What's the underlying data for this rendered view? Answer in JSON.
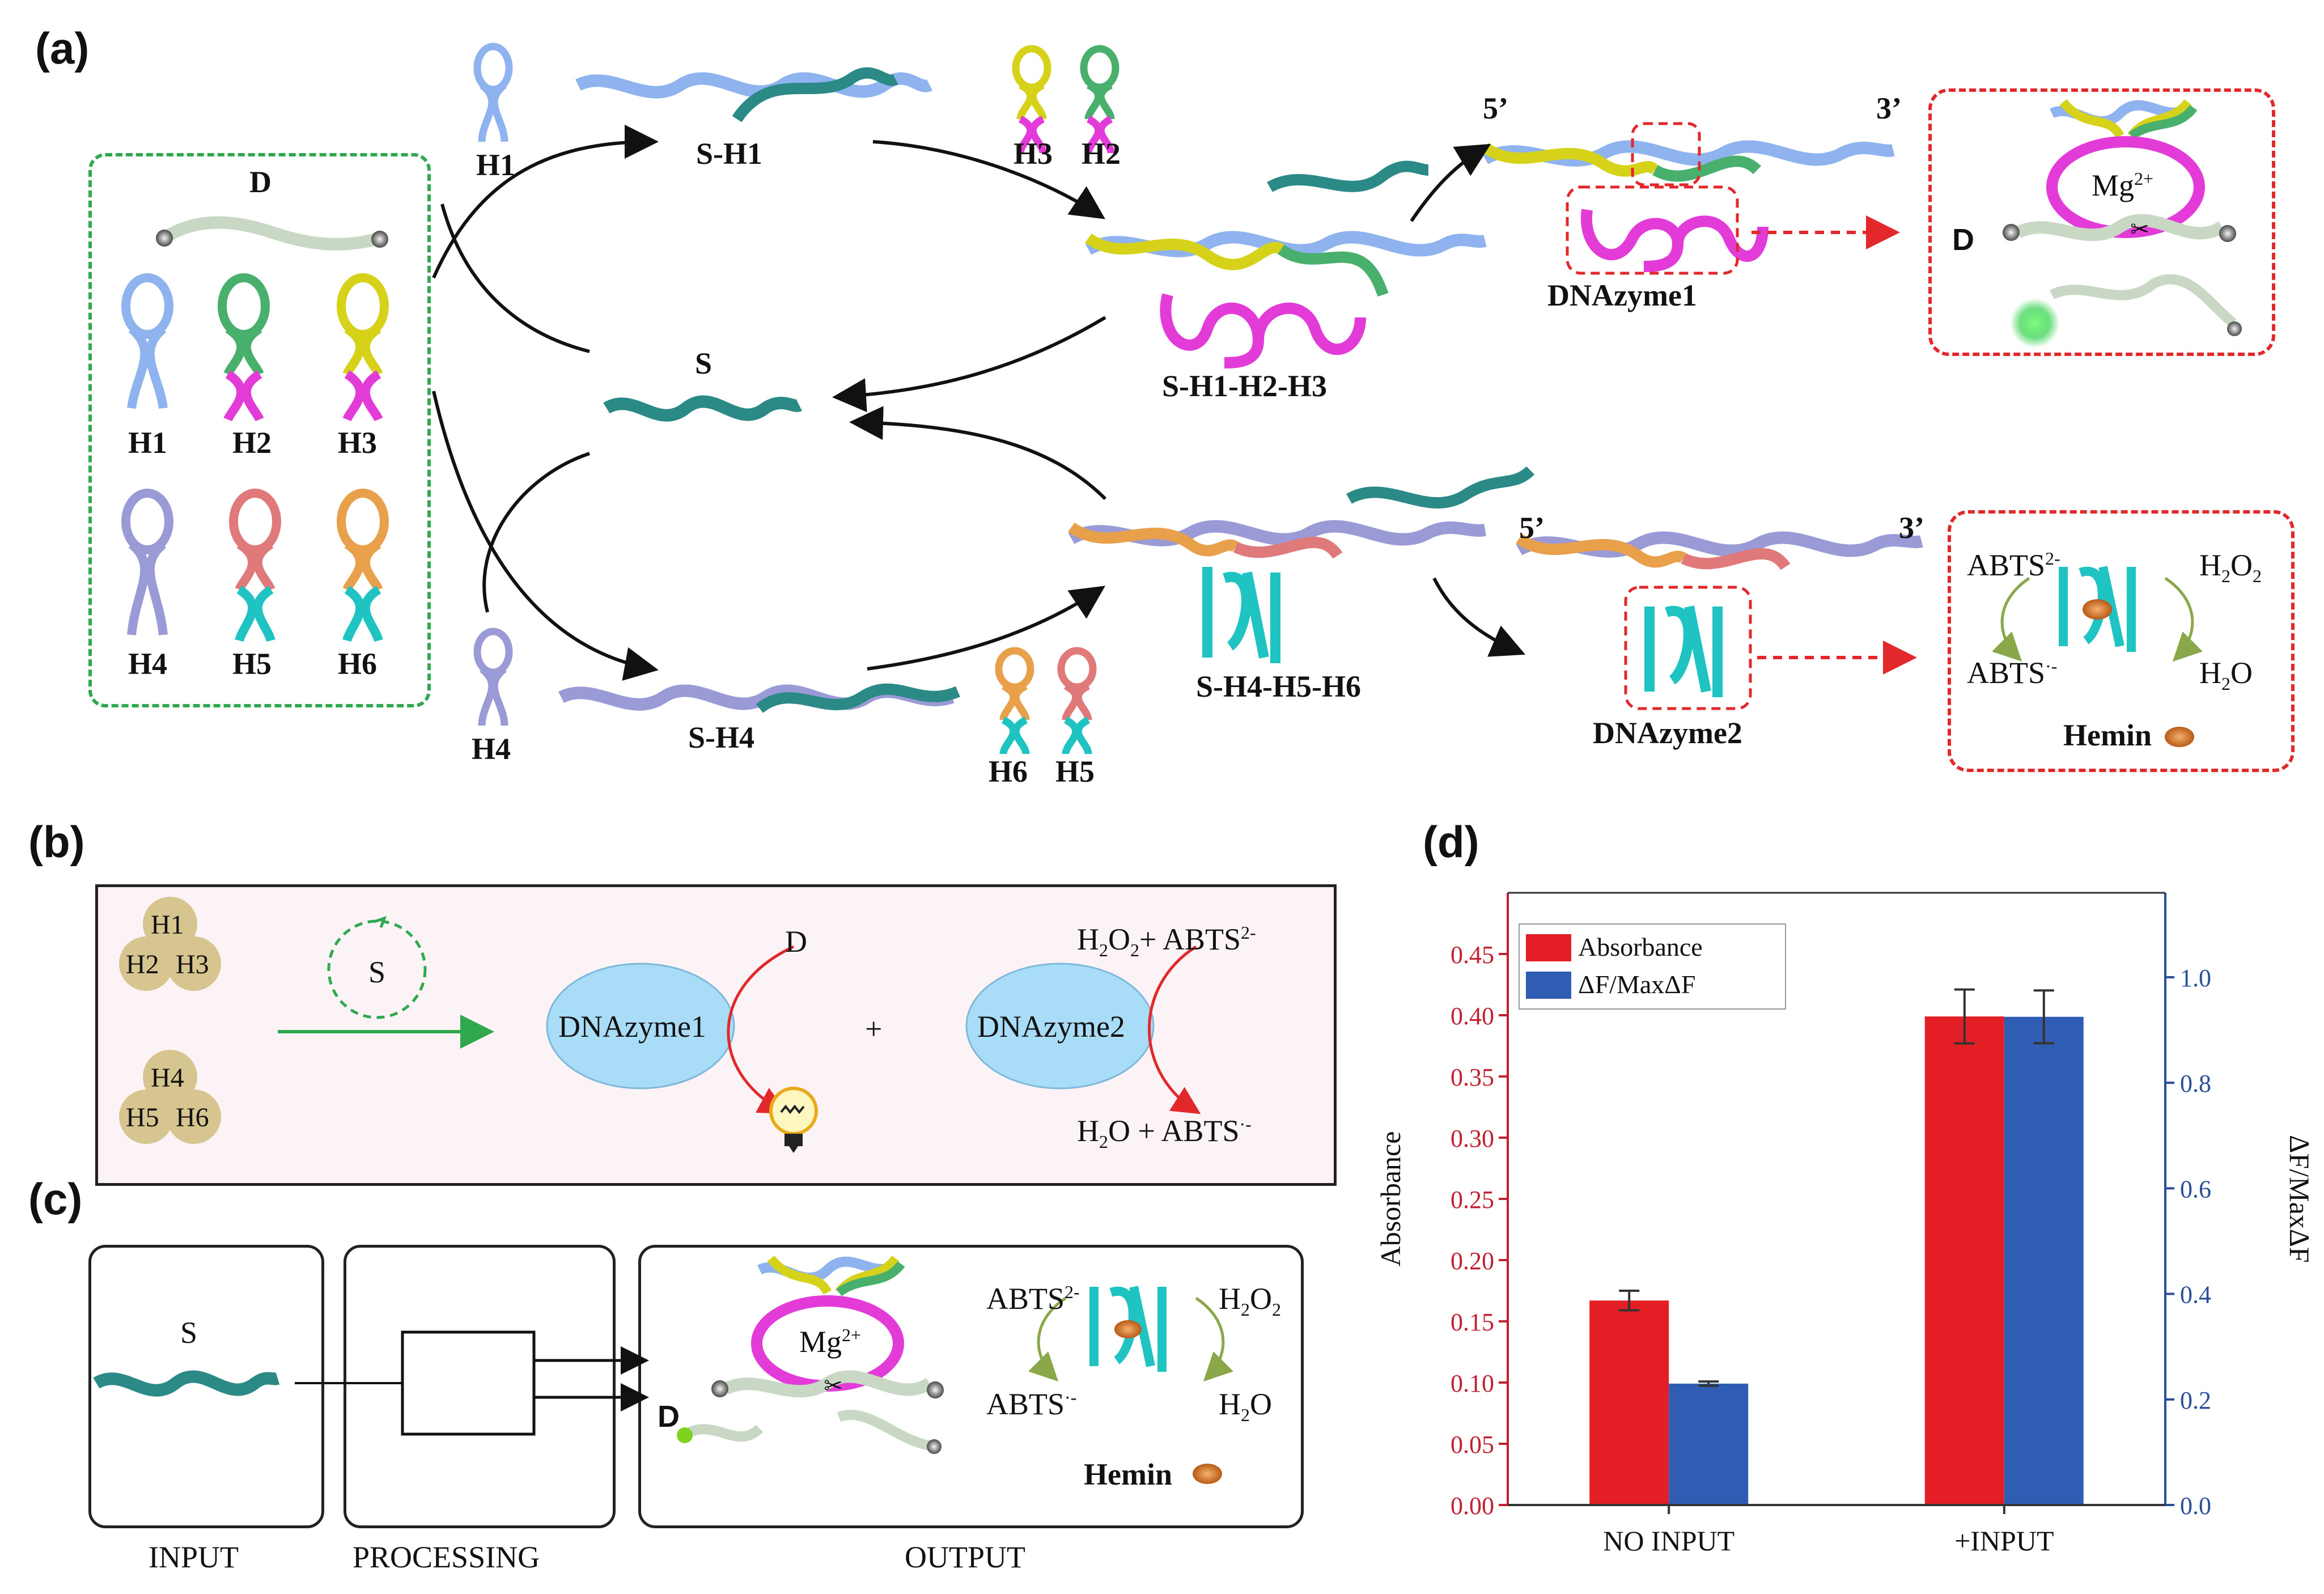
{
  "panels": {
    "a": "(a)",
    "b": "(b)",
    "c": "(c)",
    "d": "(d)"
  },
  "panel_a": {
    "D": "D",
    "hairpins": [
      "H1",
      "H2",
      "H3",
      "H4",
      "H5",
      "H6"
    ],
    "H1_top": "H1",
    "S_H1": "S-H1",
    "H3_top": "H3",
    "H2_top": "H2",
    "S": "S",
    "S_H1_H2_H3": "S-H1-H2-H3",
    "end5_top": "5’",
    "end3_top": "3’",
    "dnazyme1": "DNAzyme1",
    "mg": "Mg",
    "mg_sup": "2+",
    "D_right": "D",
    "H4_bottom": "H4",
    "S_H4": "S-H4",
    "H6_bottom": "H6",
    "H5_bottom": "H5",
    "S_H4_H5_H6": "S-H4-H5-H6",
    "end5_bottom": "5’",
    "end3_bottom": "3’",
    "dnazyme2": "DNAzyme2",
    "abts_top": "ABTS",
    "abts_top_sup": "2-",
    "h2o2": "H",
    "h2o2_sub1": "2",
    "h2o2_o": "O",
    "h2o2_sub2": "2",
    "abts_bottom": "ABTS",
    "abts_bottom_sup": "·-",
    "h2o": "H",
    "h2o_sub": "2",
    "h2o_o": "O",
    "hemin": "Hemin"
  },
  "panel_b": {
    "h1": "H1",
    "h2": "H2",
    "h3": "H3",
    "h4": "H4",
    "h5": "H5",
    "h6": "H6",
    "s": "S",
    "dnazyme1": "DNAzyme1",
    "d": "D",
    "plus": "+",
    "dnazyme2": "DNAzyme2",
    "h2o2_abts": "H",
    "h2o2_abts_sub1": "2",
    "h2o2_abts_o": "O",
    "h2o2_abts_sub2": "2",
    "h2o2_abts_rest": "+ ABTS",
    "h2o2_abts_sup": "2-",
    "h2o_abts": "H",
    "h2o_abts_sub": "2",
    "h2o_abts_rest": "O + ABTS",
    "h2o_abts_sup": "·-"
  },
  "panel_c": {
    "s": "S",
    "input": "INPUT",
    "processing": "PROCESSING",
    "output": "OUTPUT",
    "mg": "Mg",
    "mg_sup": "2+",
    "d": "D",
    "abts_top": "ABTS",
    "abts_top_sup": "2-",
    "h2o2": "H",
    "h2o2_sub1": "2",
    "h2o2_o": "O",
    "h2o2_sub2": "2",
    "abts_bottom": "ABTS",
    "abts_bottom_sup": "·-",
    "h2o": "H",
    "h2o_sub": "2",
    "h2o_o": "O",
    "hemin": "Hemin"
  },
  "colors": {
    "h1": "#8fb3ee",
    "h2": "#48b06c",
    "h3": "#d6d21a",
    "h4": "#9a9ad6",
    "h5": "#e07a7a",
    "h6": "#e9a04a",
    "magenta": "#e33bd8",
    "teal": "#2b8a86",
    "cyan": "#1fc4c2",
    "red": "#e3282b",
    "green": "#2fa84f",
    "bar_red": "#e31e24",
    "bar_blue": "#2f5db3",
    "axis_left": "#c02030",
    "axis_right": "#2a4f9a",
    "pinkbg": "#fbf3f5",
    "bubble": "#a9dcf6",
    "bead": "#d6c58f"
  },
  "chart_data": {
    "type": "bar",
    "categories": [
      "NO INPUT",
      "+INPUT"
    ],
    "series": [
      {
        "name": "Absorbance",
        "axis": "left",
        "values": [
          0.167,
          0.399
        ],
        "errors": [
          0.008,
          0.022
        ]
      },
      {
        "name": "ΔF/MaxΔF",
        "axis": "right",
        "values": [
          0.23,
          0.925
        ],
        "errors": [
          0.004,
          0.05
        ]
      }
    ],
    "ylabel_left": "Absorbance",
    "ylabel_right": "ΔF/MaxΔF",
    "ylim_left": [
      0,
      0.5
    ],
    "ylim_right": [
      0,
      1.16
    ],
    "yticks_left": [
      "0.00",
      "0.05",
      "0.10",
      "0.15",
      "0.20",
      "0.25",
      "0.30",
      "0.35",
      "0.40",
      "0.45"
    ],
    "yticks_right": [
      "0.0",
      "0.2",
      "0.4",
      "0.6",
      "0.8",
      "1.0"
    ],
    "legend": [
      "Absorbance",
      "ΔF/MaxΔF"
    ],
    "legend_position": "top-left"
  }
}
